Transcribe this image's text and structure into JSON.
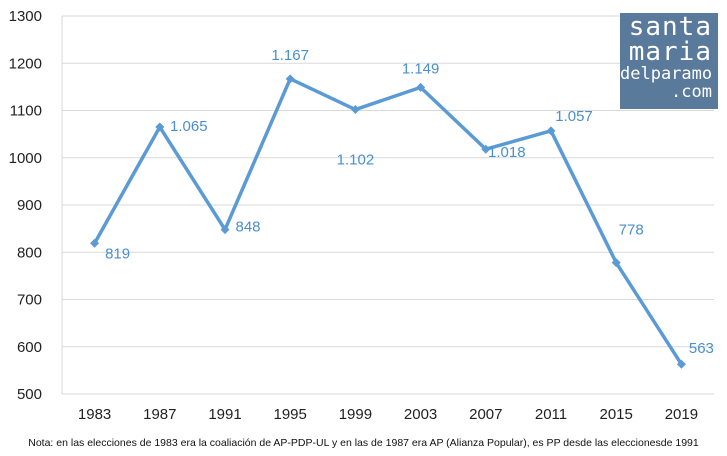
{
  "chart_data": {
    "type": "line",
    "title": "",
    "xlabel": "",
    "ylabel": "",
    "categories": [
      "1983",
      "1987",
      "1991",
      "1995",
      "1999",
      "2003",
      "2007",
      "2011",
      "2015",
      "2019"
    ],
    "series": [
      {
        "values": [
          819,
          1065,
          848,
          1167,
          1102,
          1149,
          1018,
          1057,
          778,
          563
        ],
        "labels": [
          "819",
          "1.065",
          "848",
          "1.167",
          "1.102",
          "1.149",
          "1.018",
          "1.057",
          "778",
          "563"
        ],
        "color": "#5b9bd5"
      }
    ],
    "ylim": [
      500,
      1300
    ],
    "yticks": [
      500,
      600,
      700,
      800,
      900,
      1000,
      1100,
      1200,
      1300
    ],
    "grid": true,
    "legend": "none"
  },
  "logo": {
    "line1": "santa",
    "line2": "maria",
    "line3": "delparamo",
    "line4": ".com",
    "background": "#5a7a9c"
  },
  "note": "Nota: en las elecciones de 1983 era la coaliación de AP-PDP-UL y en las de 1987 era AP (Alianza Popular), es PP desde las eleccionesde 1991"
}
